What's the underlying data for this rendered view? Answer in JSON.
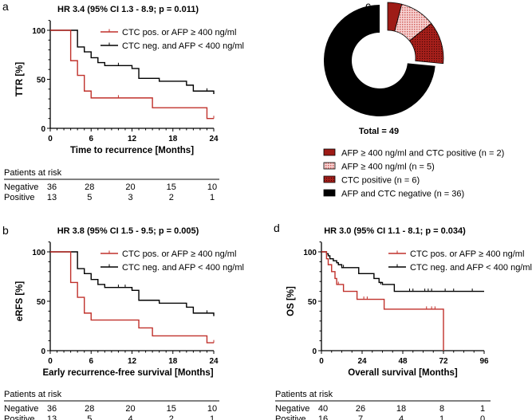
{
  "colors": {
    "positive": "#c0312b",
    "negative": "#000000",
    "dark_red": "#9e1b16",
    "light_pink": "#f4c6c6"
  },
  "chart_data": [
    {
      "panel": "a",
      "type": "line",
      "title": "HR 3.4 (95% CI 1.3 - 8.9; p = 0.011)",
      "xlabel": "Time to recurrence [Months]",
      "ylabel": "TTR [%]",
      "xlim": [
        0,
        24
      ],
      "ylim": [
        0,
        100
      ],
      "xticks": [
        0,
        6,
        12,
        18,
        24
      ],
      "yticks": [
        0,
        50,
        100
      ],
      "legend": "top-right",
      "series": [
        {
          "name": "CTC pos. or AFP ≥ 400 ng/ml",
          "color": "#c0312b",
          "points": [
            [
              0,
              100
            ],
            [
              3,
              69
            ],
            [
              4,
              54
            ],
            [
              5,
              38
            ],
            [
              6,
              31
            ],
            [
              15,
              21
            ],
            [
              23,
              10
            ],
            [
              24,
              10
            ]
          ],
          "censored": [
            [
              10,
              31
            ],
            [
              24,
              10
            ]
          ]
        },
        {
          "name": "CTC neg. and AFP < 400 ng/ml",
          "color": "#000000",
          "points": [
            [
              0,
              100
            ],
            [
              4,
              83
            ],
            [
              5,
              78
            ],
            [
              6,
              72
            ],
            [
              7,
              67
            ],
            [
              8,
              64
            ],
            [
              12,
              61
            ],
            [
              13,
              51
            ],
            [
              16,
              48
            ],
            [
              20,
              44
            ],
            [
              21,
              38
            ],
            [
              24,
              35
            ]
          ],
          "censored": [
            [
              10,
              64
            ],
            [
              23,
              38
            ]
          ]
        }
      ],
      "at_risk": {
        "title": "Patients at risk",
        "times": [
          0,
          6,
          12,
          18,
          24
        ],
        "rows": [
          {
            "label": "Negative",
            "values": [
              "36",
              "28",
              "20",
              "15",
              "10"
            ]
          },
          {
            "label": "Positive",
            "values": [
              "13",
              "5",
              "3",
              "2",
              "1"
            ]
          }
        ]
      }
    },
    {
      "panel": "b",
      "type": "line",
      "title": "HR 3.8 (95% CI 1.5 - 9.5; p = 0.005)",
      "xlabel": "Early recurrence-free survival [Months]",
      "ylabel": "eRFS [%]",
      "xlim": [
        0,
        24
      ],
      "ylim": [
        0,
        100
      ],
      "xticks": [
        0,
        6,
        12,
        18,
        24
      ],
      "yticks": [
        0,
        50,
        100
      ],
      "legend": "top-right",
      "series": [
        {
          "name": "CTC pos. or AFP ≥ 400 ng/ml",
          "color": "#c0312b",
          "points": [
            [
              0,
              100
            ],
            [
              3,
              69
            ],
            [
              4,
              54
            ],
            [
              5,
              38
            ],
            [
              6,
              31
            ],
            [
              13,
              23
            ],
            [
              15,
              15
            ],
            [
              23,
              8
            ],
            [
              24,
              8
            ]
          ],
          "censored": [
            [
              24,
              8
            ]
          ]
        },
        {
          "name": "CTC neg. and AFP < 400 ng/ml",
          "color": "#000000",
          "points": [
            [
              0,
              100
            ],
            [
              4,
              83
            ],
            [
              5,
              78
            ],
            [
              6,
              72
            ],
            [
              7,
              67
            ],
            [
              8,
              64
            ],
            [
              12,
              61
            ],
            [
              13,
              51
            ],
            [
              16,
              48
            ],
            [
              20,
              44
            ],
            [
              21,
              38
            ],
            [
              24,
              35
            ]
          ],
          "censored": [
            [
              10,
              64
            ],
            [
              11,
              64
            ],
            [
              23,
              38
            ]
          ]
        }
      ],
      "at_risk": {
        "title": "Patients at risk",
        "times": [
          0,
          6,
          12,
          18,
          24
        ],
        "rows": [
          {
            "label": "Negative",
            "values": [
              "36",
              "28",
              "20",
              "15",
              "10"
            ]
          },
          {
            "label": "Positive",
            "values": [
              "13",
              "5",
              "4",
              "2",
              "1"
            ]
          }
        ]
      }
    },
    {
      "panel": "c",
      "type": "pie",
      "title": "Total = 49",
      "categories": [
        "AFP ≥ 400 ng/ml and CTC positive (n = 2)",
        "AFP ≥ 400 ng/ml (n = 5)",
        "CTC positive (n = 6)",
        "AFP and CTC negative (n = 36)"
      ],
      "values": [
        2,
        5,
        6,
        36
      ],
      "fills": [
        "solid-dark-red",
        "checkered-pink",
        "dotted-red",
        "solid-black"
      ],
      "legend": "bottom"
    },
    {
      "panel": "d",
      "type": "line",
      "title": "HR 3.0 (95% CI 1.1 - 8.1; p = 0.034)",
      "xlabel": "Overall survival [Months]",
      "ylabel": "OS [%]",
      "xlim": [
        0,
        96
      ],
      "ylim": [
        0,
        100
      ],
      "xticks": [
        0,
        24,
        48,
        72,
        96
      ],
      "yticks": [
        0,
        50,
        100
      ],
      "legend": "top-right",
      "series": [
        {
          "name": "CTC pos. or AFP ≥ 400 ng/ml",
          "color": "#c0312b",
          "points": [
            [
              0,
              100
            ],
            [
              3,
              93
            ],
            [
              4,
              87
            ],
            [
              6,
              80
            ],
            [
              8,
              73
            ],
            [
              9,
              67
            ],
            [
              13,
              60
            ],
            [
              21,
              52
            ],
            [
              37,
              42
            ],
            [
              72,
              42
            ],
            [
              72,
              0
            ]
          ],
          "censored": [
            [
              10,
              67
            ],
            [
              25,
              52
            ],
            [
              27,
              52
            ],
            [
              62,
              42
            ],
            [
              65,
              42
            ],
            [
              67,
              42
            ]
          ]
        },
        {
          "name": "CTC neg. and AFP < 400 ng/ml",
          "color": "#000000",
          "points": [
            [
              0,
              100
            ],
            [
              3,
              98
            ],
            [
              4,
              96
            ],
            [
              5,
              93
            ],
            [
              7,
              91
            ],
            [
              9,
              89
            ],
            [
              10,
              87
            ],
            [
              12,
              84
            ],
            [
              22,
              78
            ],
            [
              31,
              73
            ],
            [
              34,
              69
            ],
            [
              36,
              67
            ],
            [
              43,
              60
            ],
            [
              96,
              60
            ]
          ],
          "censored": [
            [
              13,
              84
            ],
            [
              35,
              67
            ],
            [
              52,
              60
            ],
            [
              54,
              60
            ],
            [
              61,
              60
            ],
            [
              63,
              60
            ],
            [
              65,
              60
            ],
            [
              73,
              60
            ],
            [
              78,
              60
            ],
            [
              89,
              60
            ]
          ]
        }
      ],
      "at_risk": {
        "title": "Patients at risk",
        "times": [
          0,
          24,
          48,
          72,
          96
        ],
        "rows": [
          {
            "label": "Negative",
            "values": [
              "40",
              "26",
              "18",
              "8",
              "1"
            ]
          },
          {
            "label": "Positive",
            "values": [
              "16",
              "7",
              "4",
              "1",
              "0"
            ]
          }
        ]
      }
    }
  ]
}
